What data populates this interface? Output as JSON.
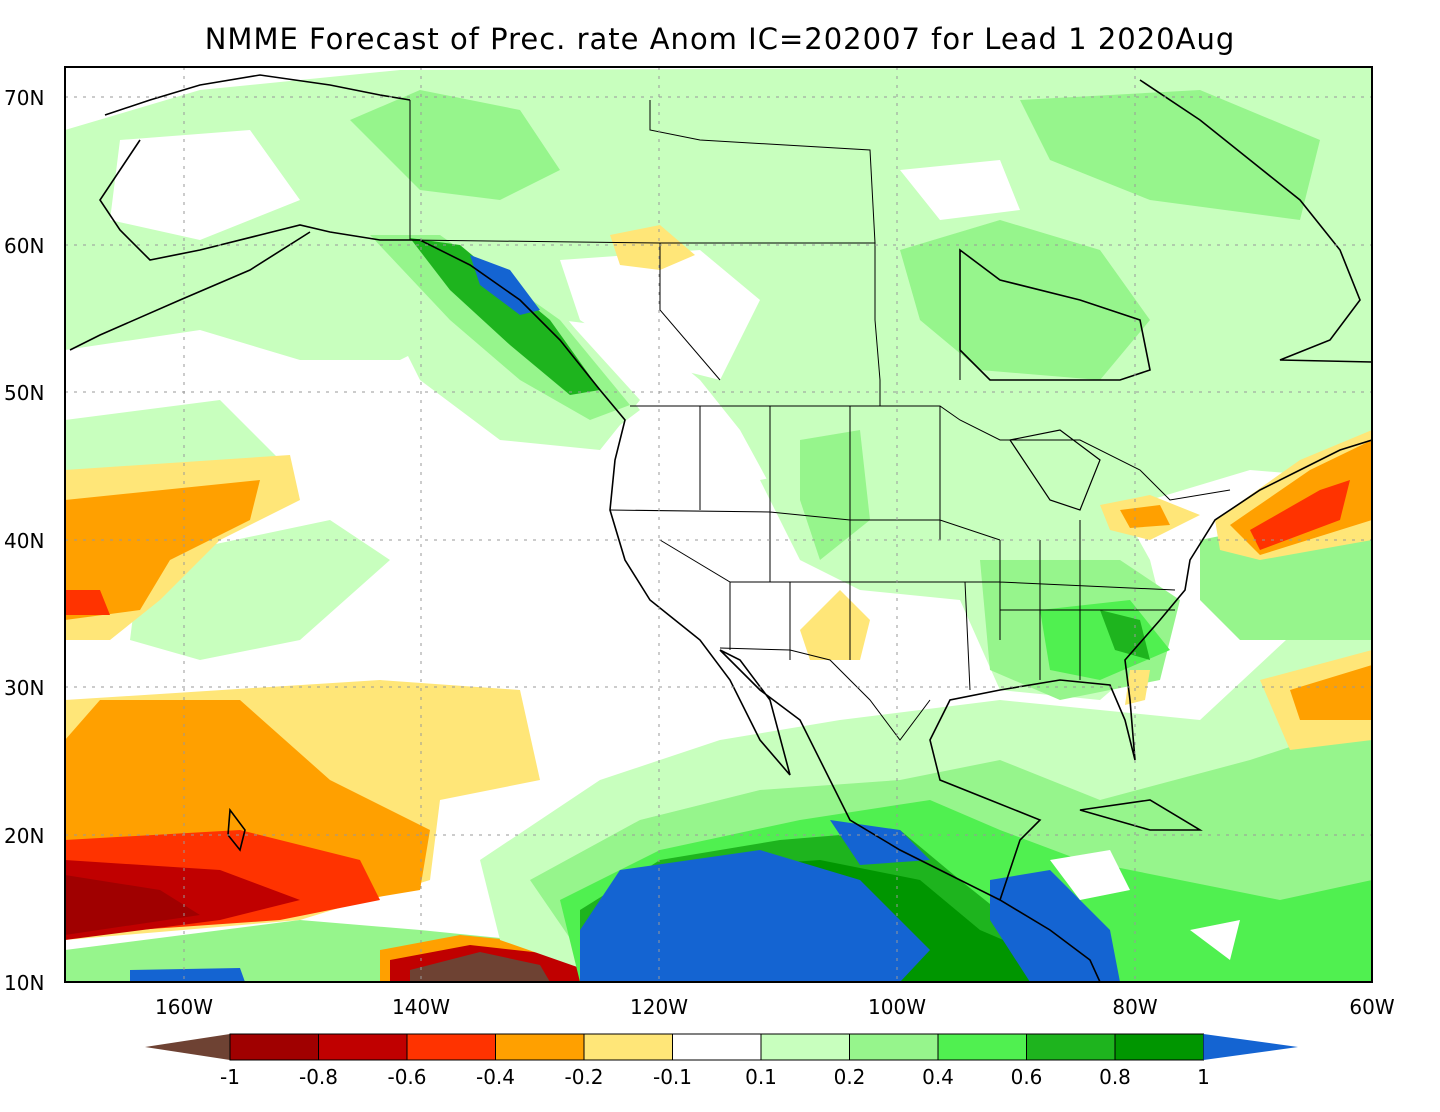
{
  "title": "NMME Forecast of Prec. rate Anom IC=202007 for Lead 1 2020Aug",
  "lat_labels": [
    "70N",
    "60N",
    "50N",
    "40N",
    "30N",
    "20N",
    "10N"
  ],
  "lon_labels": [
    "160W",
    "140W",
    "120W",
    "100W",
    "80W",
    "60W"
  ],
  "colorbar": {
    "labels": [
      "-1",
      "-0.8",
      "-0.6",
      "-0.4",
      "-0.2",
      "-0.1",
      "0.1",
      "0.2",
      "0.4",
      "0.6",
      "0.8",
      "1"
    ],
    "colors": [
      "#6e4233",
      "#a00000",
      "#c00000",
      "#ff3300",
      "#ffa000",
      "#ffe678",
      "#ffffff",
      "#c8ffbe",
      "#96f58c",
      "#50f050",
      "#1eb41e",
      "#009600",
      "#1464d2"
    ]
  }
}
